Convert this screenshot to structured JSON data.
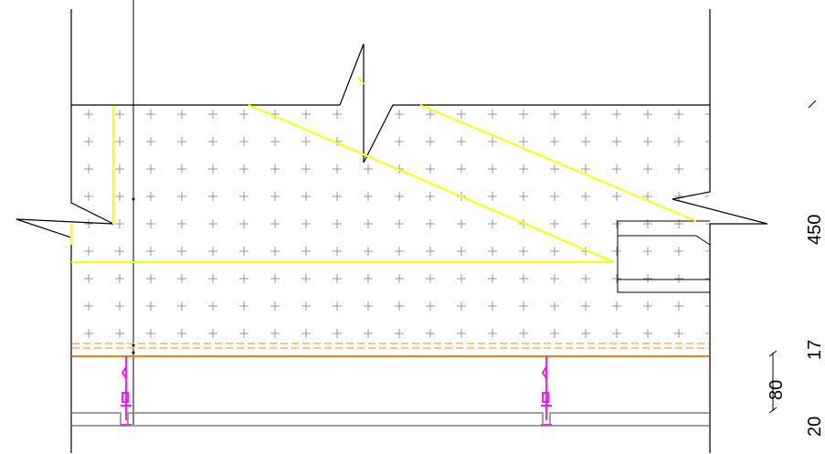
{
  "drawing": {
    "dimensions": {
      "slab_thickness": "450",
      "layer_thickness": "17",
      "bottom_thickness": "20",
      "hanger_spacing": "80"
    },
    "colors": {
      "background": "#ffffff",
      "outline": "#000000",
      "rebar": "#ffff00",
      "insulation_layer": "#ff8000",
      "insulation_dashed": "#ffb060",
      "hanger": "#ff00ff",
      "ceiling_profile": "#808080",
      "hatch": "#7f7f7f"
    }
  }
}
